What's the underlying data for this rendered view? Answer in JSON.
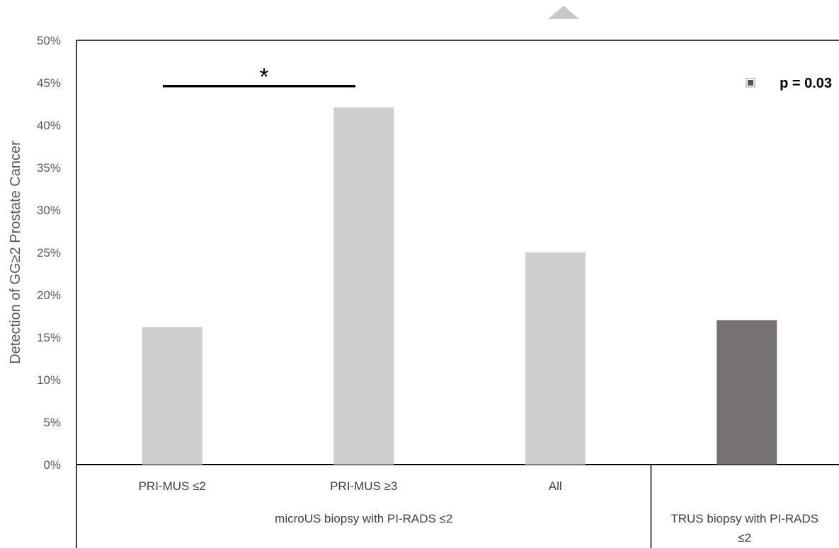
{
  "chart_data": {
    "type": "bar",
    "ylabel": "Detection of  GG≥2 Prostate Cancer",
    "ylim": [
      0,
      0.5
    ],
    "yticks": [
      {
        "value": 0.0,
        "label": "0%"
      },
      {
        "value": 0.05,
        "label": "5%"
      },
      {
        "value": 0.1,
        "label": "10%"
      },
      {
        "value": 0.15,
        "label": "15%"
      },
      {
        "value": 0.2,
        "label": "20%"
      },
      {
        "value": 0.25,
        "label": "25%"
      },
      {
        "value": 0.3,
        "label": "30%"
      },
      {
        "value": 0.35,
        "label": "35%"
      },
      {
        "value": 0.4,
        "label": "40%"
      },
      {
        "value": 0.45,
        "label": "45%"
      },
      {
        "value": 0.5,
        "label": "50%"
      }
    ],
    "categories": [
      "PRI-MUS ≤2",
      "PRI-MUS ≥3",
      "All",
      ""
    ],
    "values": [
      0.162,
      0.421,
      0.25,
      0.17
    ],
    "bar_colors": [
      "#d0cfcf",
      "#d0cfcf",
      "#d0cfcf",
      "#767170"
    ],
    "groups": [
      {
        "label": "microUS biopsy with PI-RADS ≤2",
        "categories": [
          0,
          1,
          2
        ]
      },
      {
        "label_lines": [
          "TRUS biopsy with PI-RADS",
          "≤2"
        ],
        "categories": [
          3
        ]
      }
    ],
    "annotations": {
      "significance": {
        "symbol": "*",
        "between": [
          0,
          1
        ],
        "at_value": 0.446
      },
      "note": "p = 0.03"
    },
    "grid": false
  }
}
